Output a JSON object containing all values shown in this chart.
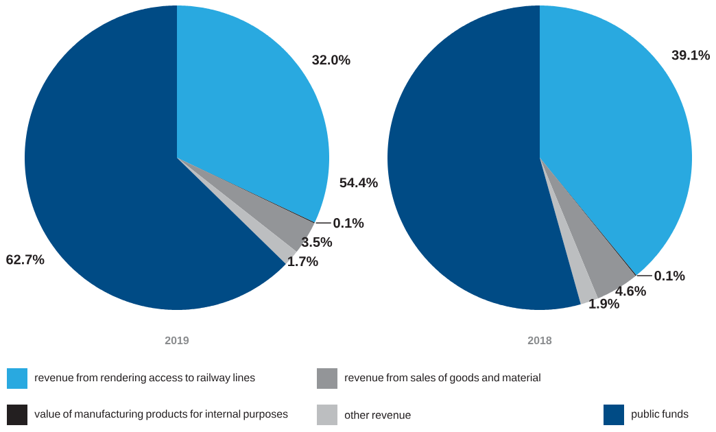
{
  "chart_data": [
    {
      "type": "pie",
      "title": "2019",
      "legend": "bottom",
      "categories": [
        "revenue from rendering access to railway lines",
        "value of manufacturing products for internal purposes",
        "revenue from sales of goods and material",
        "other revenue",
        "public funds"
      ],
      "values": [
        32.0,
        0.1,
        3.5,
        1.7,
        62.7
      ],
      "value_labels": [
        "32.0%",
        "0.1%",
        "3.5%",
        "1.7%",
        "62.7%"
      ],
      "colors": [
        "#29a9e0",
        "#231f20",
        "#939598",
        "#bcbec0",
        "#004b85"
      ]
    },
    {
      "type": "pie",
      "title": "2018",
      "categories": [
        null,
        null,
        null,
        null,
        null
      ],
      "values": [
        39.1,
        0.1,
        4.6,
        1.9,
        54.4
      ],
      "value_labels": [
        "39.1%",
        "0.1%",
        "4.6%",
        "1.9%",
        "54.4%"
      ],
      "colors": [
        "#29a9e0",
        "#231f20",
        "#939598",
        "#bcbec0",
        "#004b85"
      ]
    }
  ]
}
